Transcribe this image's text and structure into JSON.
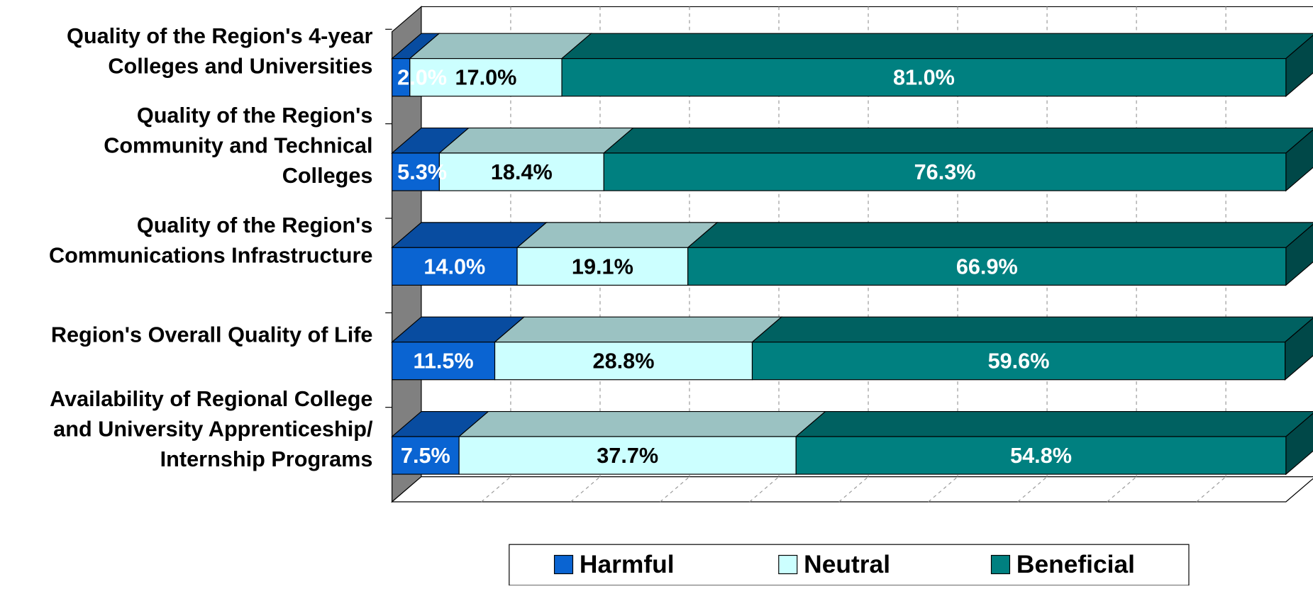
{
  "chart_data": {
    "type": "bar",
    "orientation": "horizontal",
    "stacked": true,
    "categories": [
      "Quality of the Region's 4-year\nColleges and Universities",
      "Quality of the Region's\nCommunity and Technical\nColleges",
      "Quality of the Region's\nCommunications Infrastructure",
      "Region's Overall Quality of Life",
      "Availability of Regional College\nand University Apprenticeship/\nInternship Programs"
    ],
    "series": [
      {
        "name": "Harmful",
        "color": "#0a64d2",
        "values": [
          2.0,
          5.3,
          14.0,
          11.5,
          7.5
        ],
        "value_labels": [
          "2.0%",
          "5.3%",
          "14.0%",
          "11.5%",
          "7.5%"
        ]
      },
      {
        "name": "Neutral",
        "color": "#ccffff",
        "values": [
          17.0,
          18.4,
          19.1,
          28.8,
          37.7
        ],
        "value_labels": [
          "17.0%",
          "18.4%",
          "19.1%",
          "28.8%",
          "37.7%"
        ]
      },
      {
        "name": "Beneficial",
        "color": "#008080",
        "values": [
          81.0,
          76.3,
          66.9,
          59.6,
          54.8
        ],
        "value_labels": [
          "81.0%",
          "76.3%",
          "66.9%",
          "59.6%",
          "54.8%"
        ]
      }
    ],
    "xlim": [
      0,
      100
    ],
    "grid": true,
    "legend": "bottom"
  }
}
